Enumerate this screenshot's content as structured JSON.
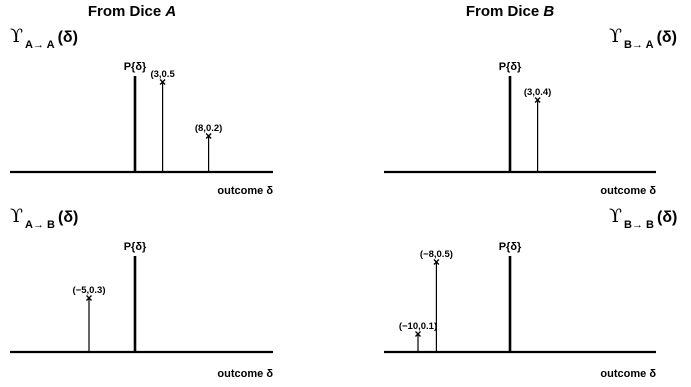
{
  "columns": [
    {
      "prefix": "From Dice ",
      "emph": "A"
    },
    {
      "prefix": "From Dice ",
      "emph": "B"
    }
  ],
  "chart_data": [
    {
      "type": "stem",
      "function": {
        "symbol": "ϒ",
        "subscript": "A→ A",
        "argument": "(δ)"
      },
      "ylabel": "P{δ}",
      "xlabel": "outcome δ",
      "points": [
        {
          "x": 3,
          "y": 0.5,
          "label": "(3,0.5"
        },
        {
          "x": 8,
          "y": 0.2,
          "label": "(8,0.2)"
        }
      ]
    },
    {
      "type": "stem",
      "function": {
        "symbol": "ϒ",
        "subscript": "B→ A",
        "argument": "(δ)"
      },
      "ylabel": "P{δ}",
      "xlabel": "outcome δ",
      "points": [
        {
          "x": 3,
          "y": 0.4,
          "label": "(3,0.4)"
        }
      ]
    },
    {
      "type": "stem",
      "function": {
        "symbol": "ϒ",
        "subscript": "A→ B",
        "argument": "(δ)"
      },
      "ylabel": "P{δ}",
      "xlabel": "outcome δ",
      "points": [
        {
          "x": -5,
          "y": 0.3,
          "label": "(−5,0.3)"
        }
      ]
    },
    {
      "type": "stem",
      "function": {
        "symbol": "ϒ",
        "subscript": "B→ B",
        "argument": "(δ)"
      },
      "ylabel": "P{δ}",
      "xlabel": "outcome δ",
      "points": [
        {
          "x": -10,
          "y": 0.1,
          "label": "(−10,0.1)"
        },
        {
          "x": -8,
          "y": 0.5,
          "label": "(−8,0.5)"
        }
      ]
    }
  ]
}
